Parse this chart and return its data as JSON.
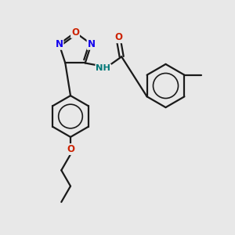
{
  "bg_color": "#e8e8e8",
  "bond_color": "#1a1a1a",
  "N_color": "#1100ee",
  "O_color": "#cc2200",
  "NH_color": "#007777",
  "fig_size": [
    3.0,
    3.0
  ],
  "dpi": 100,
  "xlim": [
    0,
    10
  ],
  "ylim": [
    0,
    10
  ]
}
